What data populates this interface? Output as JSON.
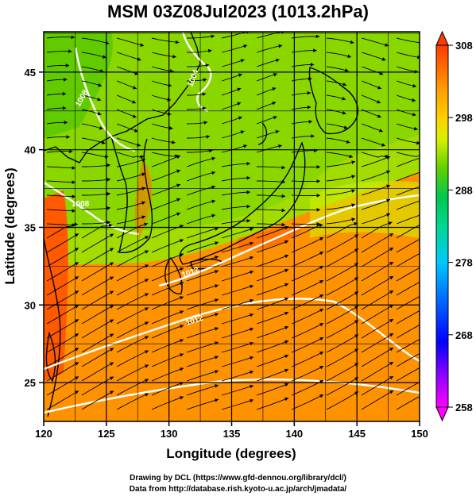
{
  "title": "MSM 03Z08Jul2023 (1013.2hPa)",
  "x_axis": {
    "label": "Longitude (degrees)",
    "min": 120,
    "max": 150,
    "ticks": [
      "120",
      "125",
      "130",
      "135",
      "140",
      "145",
      "150"
    ]
  },
  "y_axis": {
    "label": "Latitude  (degrees)",
    "min": 22.5,
    "max": 47.6,
    "ticks": [
      "25",
      "30",
      "35",
      "40",
      "45"
    ]
  },
  "colorbar": {
    "min": 258,
    "max": 308,
    "ticks": [
      "258",
      "268",
      "278",
      "288",
      "298",
      "308"
    ],
    "colors": [
      "#ff00ff",
      "#7d00ff",
      "#0000ff",
      "#006cff",
      "#00c8ff",
      "#00d8a0",
      "#00c850",
      "#48c800",
      "#a0e000",
      "#e8f000",
      "#ffc000",
      "#ff8c00",
      "#ff4a00"
    ]
  },
  "contour_labels": [
    "1004",
    "1008",
    "1008",
    "1012",
    "1012"
  ],
  "credits": [
    "Drawing by DCL (https://www.gfd-dennou.org/library/dcl/)",
    "Data from http://database.rish.kyoto-u.ac.jp/arch/jmadata/"
  ]
}
